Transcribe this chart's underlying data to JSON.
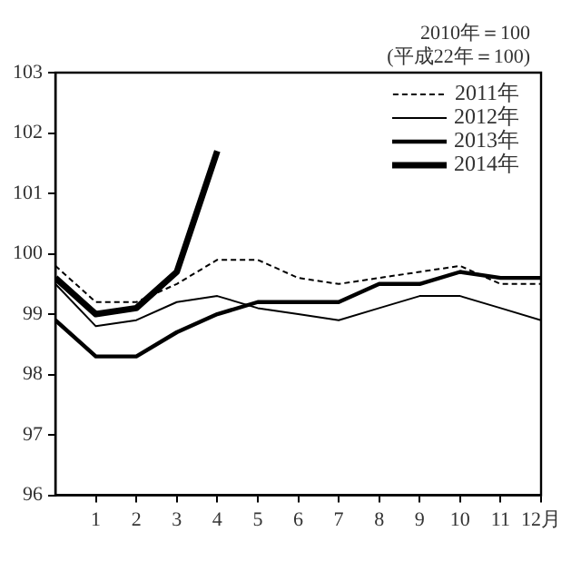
{
  "chart_data": {
    "type": "line",
    "annotations": [
      "2010年＝100",
      "(平成22年＝100)"
    ],
    "x": [
      0,
      1,
      2,
      3,
      4,
      5,
      6,
      7,
      8,
      9,
      10,
      11,
      12
    ],
    "xlim": [
      0,
      12
    ],
    "xticks": [
      1,
      2,
      3,
      4,
      5,
      6,
      7,
      8,
      9,
      10,
      11,
      {
        "value": 12,
        "label": "12月"
      }
    ],
    "ylim": [
      96,
      103
    ],
    "yticks": [
      96,
      97,
      98,
      99,
      100,
      101,
      102,
      103
    ],
    "grid": false,
    "legend": "top right",
    "marker": "none",
    "series": [
      {
        "name": "2011年",
        "color": "#000000",
        "line_style": "dashed",
        "values": [
          99.8,
          99.2,
          99.2,
          99.5,
          99.9,
          99.9,
          99.6,
          99.5,
          99.6,
          99.7,
          99.8,
          99.5,
          99.5
        ]
      },
      {
        "name": "2012年",
        "color": "#000000",
        "values": [
          99.5,
          98.8,
          98.9,
          99.2,
          99.3,
          99.1,
          99.0,
          98.9,
          99.1,
          99.3,
          99.3,
          99.1,
          98.9
        ]
      },
      {
        "name": "2013年",
        "color": "#000000",
        "values": [
          98.9,
          98.3,
          98.3,
          98.7,
          99.0,
          99.2,
          99.2,
          99.2,
          99.5,
          99.5,
          99.7,
          99.6,
          99.6
        ]
      },
      {
        "name": "2014年",
        "color": "#000000",
        "values": [
          99.6,
          99.0,
          99.1,
          99.7,
          101.7,
          null,
          null,
          null,
          null,
          null,
          null,
          null,
          null
        ]
      }
    ]
  }
}
